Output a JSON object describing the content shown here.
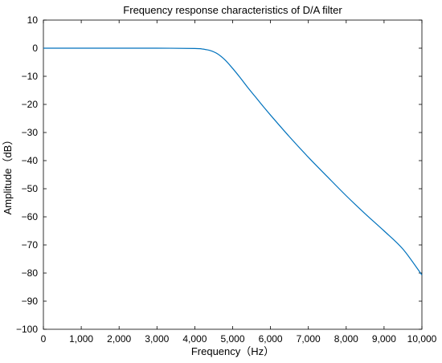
{
  "chart_data": {
    "type": "line",
    "title": "Frequency response characteristics of D/A filter",
    "xlabel": "Frequency（Hz）",
    "ylabel": "Amplitude（dB）",
    "xlim": [
      0,
      10000
    ],
    "ylim": [
      -100,
      10
    ],
    "xticks": [
      0,
      1000,
      2000,
      3000,
      4000,
      5000,
      6000,
      7000,
      8000,
      9000,
      10000
    ],
    "xtick_labels": [
      "0",
      "1,000",
      "2,000",
      "3,000",
      "4,000",
      "5,000",
      "6,000",
      "7,000",
      "8,000",
      "9,000",
      "10,000"
    ],
    "yticks": [
      10,
      0,
      -10,
      -20,
      -30,
      -40,
      -50,
      -60,
      -70,
      -80,
      -90,
      -100
    ],
    "ytick_labels": [
      "10",
      "0",
      "−10",
      "−20",
      "−30",
      "−40",
      "−50",
      "−60",
      "−70",
      "−80",
      "−90",
      "−100"
    ],
    "grid": false,
    "series": [
      {
        "color": "#0072BD",
        "x": [
          0,
          1000,
          2000,
          3000,
          4000,
          4200,
          4400,
          4600,
          4800,
          5000,
          5200,
          5400,
          5600,
          5800,
          6000,
          6500,
          7000,
          7500,
          8000,
          8500,
          9000,
          9500,
          10000
        ],
        "y": [
          0,
          0,
          0,
          0,
          -0.1,
          -0.3,
          -0.8,
          -2.0,
          -4.2,
          -7.2,
          -10.5,
          -14.0,
          -17.3,
          -20.6,
          -23.8,
          -31.5,
          -38.8,
          -45.7,
          -52.5,
          -58.9,
          -65.0,
          -71.5,
          -80.7
        ]
      }
    ]
  }
}
